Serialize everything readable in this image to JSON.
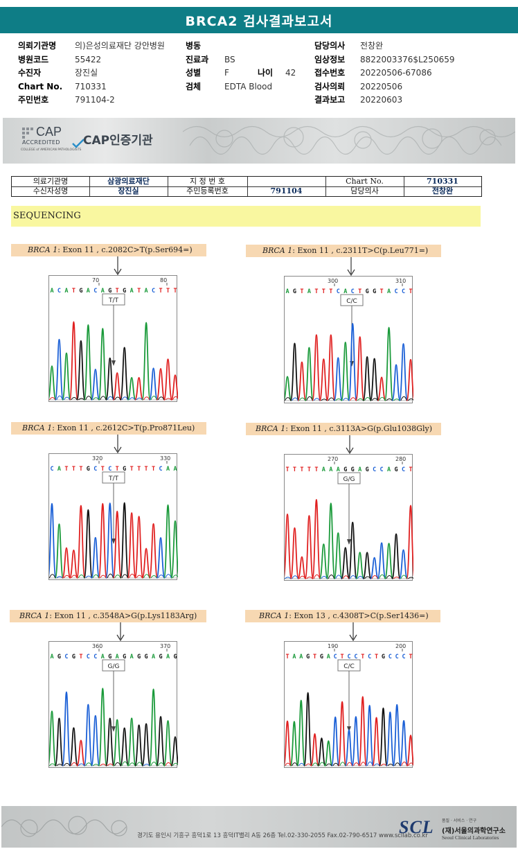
{
  "title": "BRCA2 검사결과보고서",
  "header": {
    "col1": [
      {
        "label": "의뢰기관명",
        "value": "의)은성의료재단 강안병원"
      },
      {
        "label": "병원코드",
        "value": "55422"
      },
      {
        "label": "수진자",
        "value": "장진실"
      },
      {
        "label": "Chart No.",
        "value": "710331"
      },
      {
        "label": "주민번호",
        "value": "791104-2"
      }
    ],
    "col2": [
      {
        "label": "병동",
        "value": ""
      },
      {
        "label": "진료과",
        "value": "BS"
      },
      {
        "label": "성별",
        "value": "F",
        "extra_label": "나이",
        "extra_value": "42"
      },
      {
        "label": "검체",
        "value": "EDTA Blood"
      }
    ],
    "col3": [
      {
        "label": "담당의사",
        "value": "전창완"
      },
      {
        "label": "임상정보",
        "value": "8822003376$L250659"
      },
      {
        "label": "접수번호",
        "value": "20220506-67086"
      },
      {
        "label": "검사의뢰",
        "value": "20220506"
      },
      {
        "label": "결과보고",
        "value": "20220603"
      }
    ]
  },
  "cap": {
    "logo_big": "CAP",
    "logo_small": "ACCREDITED",
    "logo_tiny": "COLLEGE of AMERICAN PATHOLOGISTS",
    "text": "CAP인증기관"
  },
  "patient_table": {
    "r1c1": "의료기관명",
    "r1c2": "삼광의료재단",
    "r1c3": "지 정 번 호",
    "r1c4": "",
    "r1c5": "Chart No.",
    "r1c6": "710331",
    "r2c1": "수신자성명",
    "r2c2": "장진실",
    "r2c3": "주민등록번호",
    "r2c4": "791104",
    "r2c5": "담당의사",
    "r2c6": "전창완"
  },
  "section_title": "SEQUENCING",
  "panels": [
    {
      "gene": "BRCA 1",
      "desc": ": Exon 11 , c.2082C>T(p.Ser694=)",
      "tick1": "70",
      "tick2": "80",
      "seq": "ACATGACAGTGATACTTT",
      "genotype": "T/T"
    },
    {
      "gene": "BRCA 1",
      "desc": ": Exon 11 , c.2311T>C(p.Leu771=)",
      "tick1": "300",
      "tick2": "310",
      "seq": "AGTATTTCACTGGTACCT",
      "genotype": "C/C"
    },
    {
      "gene": "BRCA 1",
      "desc": ": Exon 11 , c.2612C>T(p.Pro871Leu)",
      "tick1": "320",
      "tick2": "330",
      "seq": "CATTTGCTCTGTTTTCAA",
      "genotype": "T/T"
    },
    {
      "gene": "BRCA 1",
      "desc": ": Exon 11 , c.3113A>G(p.Glu1038Gly)",
      "tick1": "270",
      "tick2": "280",
      "seq": "TTTTTAAAGGAGCCAGCT",
      "genotype": "G/G"
    },
    {
      "gene": "BRCA 1",
      "desc": ": Exon 11 , c.3548A>G(p.Lys1183Arg)",
      "tick1": "360",
      "tick2": "370",
      "seq": "AGCGTCCAGAGAGGAGAG",
      "genotype": "G/G"
    },
    {
      "gene": "BRCA 1",
      "desc": ": Exon 13 , c.4308T>C(p.Ser1436=)",
      "tick1": "190",
      "tick2": "200",
      "seq": "TAAGTGACTCCTCTGCCCT",
      "genotype": "C/C"
    }
  ],
  "footer": {
    "address": "경기도 용인시 기흥구 흥덕1로 13 흥덕IT밸리 A동 26층 Tel.02-330-2055 Fax.02-790-6517 www.scllab.co.kr",
    "logo": "SCL",
    "tagline": "품질 · 서비스 · 연구",
    "name_kr": "(재)서울의과학연구소",
    "name_en": "Seoul Clinical Laboratories"
  },
  "colors": {
    "A": "#1a9a3a",
    "C": "#1a5fd6",
    "G": "#111111",
    "T": "#e02020",
    "accent": "#0e7d86"
  }
}
